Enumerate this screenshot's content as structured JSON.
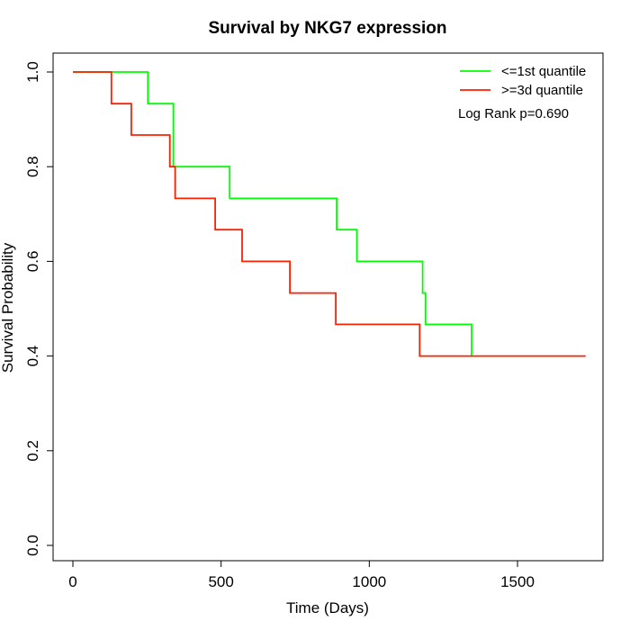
{
  "chart_data": {
    "type": "line",
    "step": true,
    "title": "Survival by NKG7 expression",
    "xlabel": "Time (Days)",
    "ylabel": "Survival Probability",
    "xlim": [
      0,
      1750
    ],
    "ylim": [
      0,
      1.0
    ],
    "x_ticks": [
      0,
      500,
      1000,
      1500
    ],
    "y_ticks": [
      0.0,
      0.2,
      0.4,
      0.6,
      0.8,
      1.0
    ],
    "x_tick_labels": [
      "0",
      "500",
      "1000",
      "1500"
    ],
    "y_tick_labels": [
      "0.0",
      "0.2",
      "0.4",
      "0.6",
      "0.8",
      "1.0"
    ],
    "grid": false,
    "legend_position": "top-right",
    "annotation": "Log Rank p=0.690",
    "series": [
      {
        "name": "<=1st quantile",
        "color": "#00ff00",
        "x": [
          0,
          253,
          339,
          529,
          890,
          958,
          1180,
          1190,
          1345
        ],
        "y": [
          1.0,
          0.933,
          0.8,
          0.733,
          0.667,
          0.6,
          0.533,
          0.467,
          0.4
        ]
      },
      {
        "name": ">=3d quantile",
        "color": "#ff2000",
        "x": [
          0,
          130,
          197,
          327,
          345,
          480,
          571,
          732,
          887,
          1170,
          1730
        ],
        "y": [
          1.0,
          0.933,
          0.867,
          0.8,
          0.733,
          0.667,
          0.6,
          0.533,
          0.467,
          0.4,
          0.4
        ]
      }
    ]
  }
}
